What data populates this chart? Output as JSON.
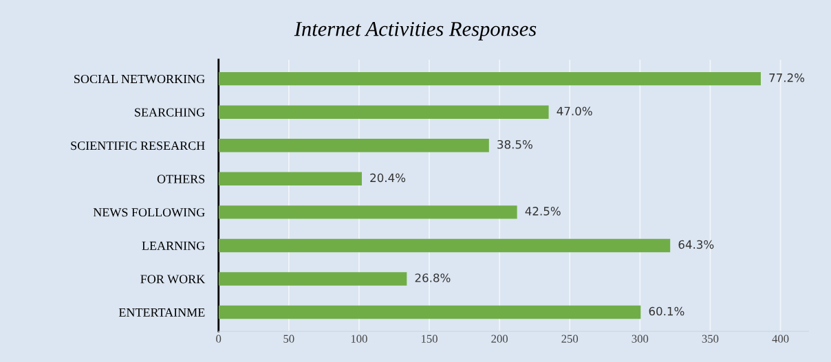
{
  "chart_data": {
    "type": "bar",
    "orientation": "horizontal",
    "title": "Internet Activities Responses",
    "categories": [
      "SOCIAL NETWORKING",
      "SEARCHING",
      "SCIENTIFIC RESEARCH",
      "OTHERS",
      "NEWS FOLLOWING",
      "LEARNING",
      "FOR WORK",
      "ENTERTAINME"
    ],
    "values": [
      386,
      235,
      192.5,
      102,
      212.5,
      321.5,
      134,
      300.5
    ],
    "annotations": [
      {
        "text": "77.2%",
        "x": 386,
        "y": "SOCIAL NETWORKING"
      },
      {
        "text": "47.0%",
        "x": 235,
        "y": "SEARCHING"
      },
      {
        "text": "38.5%",
        "x": 192.5,
        "y": "SCIENTIFIC RESEARCH"
      },
      {
        "text": "20.4%",
        "x": 102,
        "y": "OTHERS"
      },
      {
        "text": "42.5%",
        "x": 212.5,
        "y": "NEWS FOLLOWING"
      },
      {
        "text": "64.3%",
        "x": 321.5,
        "y": "LEARNING"
      },
      {
        "text": "26.8%",
        "x": 134,
        "y": "FOR WORK"
      },
      {
        "text": "60.1%",
        "x": 300.5,
        "y": "ENTERTAINME"
      }
    ],
    "color": "#70ad47",
    "xlim": [
      0,
      420
    ],
    "xticks": [
      0,
      50,
      100,
      150,
      200,
      250,
      300,
      350,
      400
    ],
    "grid": "x",
    "legend": false
  }
}
